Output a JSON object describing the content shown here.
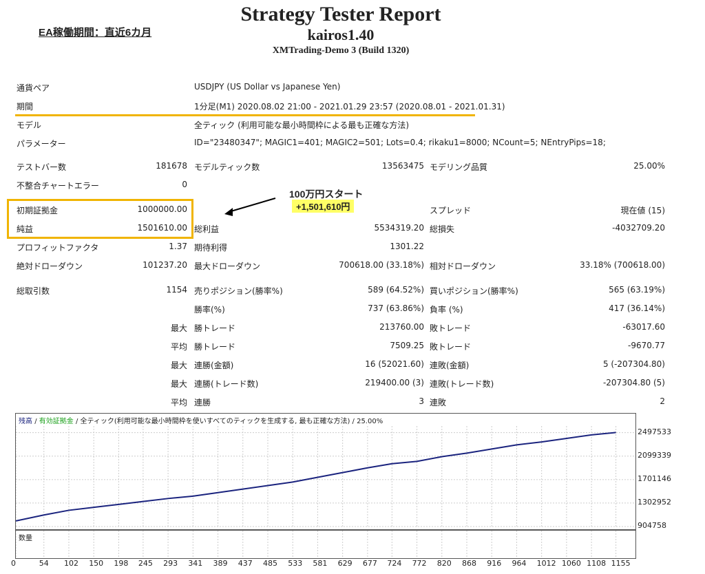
{
  "header": {
    "title": "Strategy Tester Report",
    "ea_name": "kairos1.40",
    "server": "XMTrading-Demo 3 (Build 1320)",
    "note": "EA稼働期間：直近6カ月"
  },
  "annotation": {
    "line1": "100万円スタート",
    "line2": "+1,501,610円"
  },
  "settings": [
    {
      "label": "通貨ペア",
      "value": "USDJPY (US Dollar vs Japanese Yen)"
    },
    {
      "label": "期間",
      "value": "1分足(M1) 2020.08.02 21:00 - 2021.01.29 23:57 (2020.08.01 - 2021.01.31)"
    },
    {
      "label": "モデル",
      "value": "全ティック (利用可能な最小時間枠による最も正確な方法)"
    },
    {
      "label": "パラメーター",
      "value": "ID=\"23480347\"; MAGIC1=401; MAGIC2=501; Lots=0.4; rikaku1=8000; NCount=5; NEntryPips=18;"
    }
  ],
  "stats": {
    "test_bars_label": "テストバー数",
    "test_bars": "181678",
    "model_ticks_label": "モデルティック数",
    "model_ticks": "13563475",
    "model_quality_label": "モデリング品質",
    "model_quality": "25.00%",
    "mismatch_label": "不整合チャートエラー",
    "mismatch": "0",
    "deposit_label": "初期証拠金",
    "deposit": "1000000.00",
    "spread_label": "スプレッド",
    "spread": "現在値 (15)",
    "net_label": "純益",
    "net": "1501610.00",
    "gross_profit_label": "総利益",
    "gross_profit": "5534319.20",
    "gross_loss_label": "総損失",
    "gross_loss": "-4032709.20",
    "pf_label": "プロフィットファクタ",
    "pf": "1.37",
    "expected_label": "期待利得",
    "expected": "1301.22",
    "abs_dd_label": "絶対ドローダウン",
    "abs_dd": "101237.20",
    "max_dd_label": "最大ドローダウン",
    "max_dd": "700618.00 (33.18%)",
    "rel_dd_label": "相対ドローダウン",
    "rel_dd": "33.18% (700618.00)",
    "total_trades_label": "総取引数",
    "total_trades": "1154",
    "short_label": "売りポジション(勝率%)",
    "short": "589 (64.52%)",
    "long_label": "買いポジション(勝率%)",
    "long": "565 (63.19%)",
    "win_pct_label": "勝率(%)",
    "win_pct": "737 (63.86%)",
    "loss_pct_label": "負率 (%)",
    "loss_pct": "417 (36.14%)",
    "max_label": "最大",
    "avg_label": "平均",
    "win_trade_label": "勝トレード",
    "loss_trade_label": "敗トレード",
    "max_win": "213760.00",
    "max_loss": "-63017.60",
    "avg_win": "7509.25",
    "avg_loss": "-9670.77",
    "consec_win_amt_label": "連勝(金額)",
    "consec_win_amt": "16 (52021.60)",
    "consec_loss_amt_label": "連敗(金額)",
    "consec_loss_amt": "5 (-207304.80)",
    "consec_win_trd_label": "連勝(トレード数)",
    "consec_win_trd": "219400.00 (3)",
    "consec_loss_trd_label": "連敗(トレード数)",
    "consec_loss_trd": "-207304.80 (5)",
    "avg_consec_win_label": "連勝",
    "avg_consec_win": "3",
    "avg_consec_loss_label": "連敗",
    "avg_consec_loss": "2"
  },
  "chart_legend": {
    "balance": "残高",
    "equity": "有効証拠金",
    "desc": "全ティック(利用可能な最小時間枠を使いすべてのティックを生成する, 最も正確な方法) / 25.00%"
  },
  "volume_label": "数量",
  "colors": {
    "balance": "#1a237e",
    "equity": "#1aa01a",
    "highlight": "#f0b400"
  },
  "chart_data": {
    "type": "line",
    "x_ticks": [
      0,
      54,
      102,
      150,
      198,
      245,
      293,
      341,
      389,
      437,
      485,
      533,
      581,
      629,
      677,
      724,
      772,
      820,
      868,
      916,
      964,
      1012,
      1060,
      1108,
      1155
    ],
    "y_ticks": [
      904758,
      1302952,
      1701146,
      2099339,
      2497533
    ],
    "ylim": [
      904758,
      2610000
    ],
    "xlim": [
      0,
      1190
    ],
    "series": [
      {
        "name": "残高",
        "x": [
          0,
          54,
          102,
          150,
          198,
          245,
          293,
          341,
          389,
          437,
          485,
          533,
          581,
          629,
          677,
          724,
          772,
          820,
          868,
          916,
          964,
          1012,
          1060,
          1108,
          1155
        ],
        "values": [
          1000000,
          1100000,
          1180000,
          1230000,
          1280000,
          1330000,
          1380000,
          1420000,
          1480000,
          1540000,
          1600000,
          1660000,
          1740000,
          1820000,
          1900000,
          1970000,
          2010000,
          2090000,
          2150000,
          2220000,
          2290000,
          2340000,
          2400000,
          2460000,
          2500000
        ]
      }
    ]
  }
}
